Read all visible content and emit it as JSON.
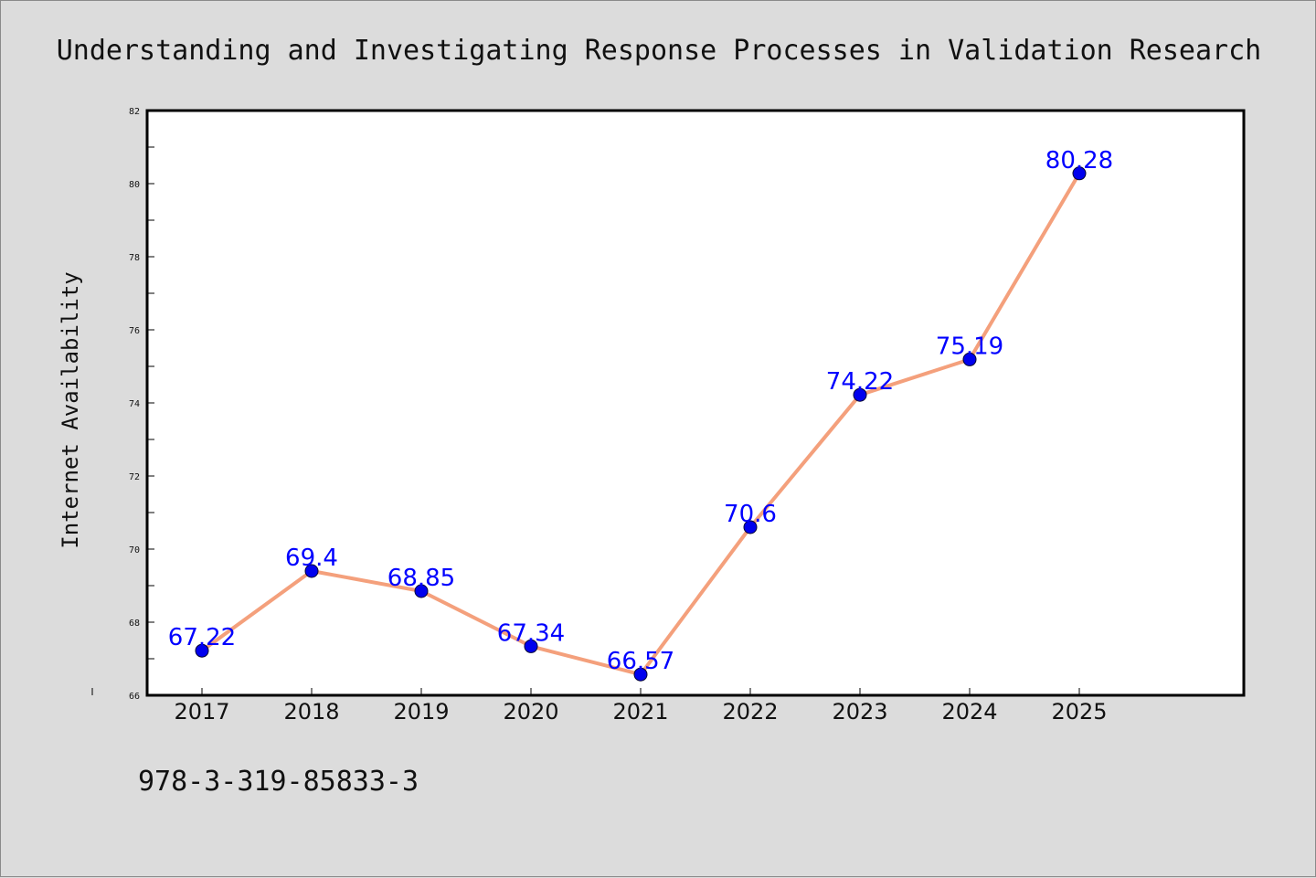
{
  "chart_data": {
    "type": "line",
    "title": "Understanding and Investigating Response Processes in Validation Research",
    "xlabel": "",
    "ylabel": "Internet Availability",
    "categories": [
      "2017",
      "2018",
      "2019",
      "2020",
      "2021",
      "2022",
      "2023",
      "2024",
      "2025"
    ],
    "series": [
      {
        "values": [
          67.22,
          69.4,
          68.85,
          67.34,
          66.57,
          70.6,
          74.22,
          75.19,
          80.28
        ],
        "labels": [
          "67.22",
          "69.4",
          "68.85",
          "67.34",
          "66.57",
          "70.6",
          "74.22",
          "75.19",
          "80.28"
        ],
        "line_color": "#f4a07c",
        "marker_color": "#0000ee"
      }
    ],
    "ylim": [
      66,
      82
    ],
    "yticks": [
      "66",
      "68",
      "70",
      "72",
      "74",
      "76",
      "78",
      "80",
      "82"
    ],
    "grid": false,
    "legend": "none"
  },
  "footer": {
    "isbn": "978-3-319-85833-3"
  },
  "colors": {
    "background": "#dcdcdc",
    "plot_background": "#ffffff",
    "data_label": "#0000ff"
  }
}
